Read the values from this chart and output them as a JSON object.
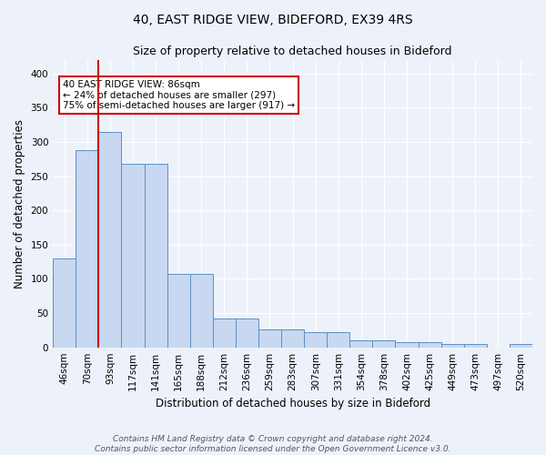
{
  "title1": "40, EAST RIDGE VIEW, BIDEFORD, EX39 4RS",
  "title2": "Size of property relative to detached houses in Bideford",
  "xlabel": "Distribution of detached houses by size in Bideford",
  "ylabel": "Number of detached properties",
  "categories": [
    "46sqm",
    "70sqm",
    "93sqm",
    "117sqm",
    "141sqm",
    "165sqm",
    "188sqm",
    "212sqm",
    "236sqm",
    "259sqm",
    "283sqm",
    "307sqm",
    "331sqm",
    "354sqm",
    "378sqm",
    "402sqm",
    "425sqm",
    "449sqm",
    "473sqm",
    "497sqm",
    "520sqm"
  ],
  "values": [
    130,
    288,
    315,
    268,
    268,
    107,
    107,
    42,
    42,
    26,
    26,
    22,
    22,
    10,
    10,
    7,
    7,
    5,
    5,
    0,
    5
  ],
  "bar_color": "#c8d8f0",
  "bar_edge_color": "#5b8ec4",
  "background_color": "#edf2fa",
  "grid_color": "#ffffff",
  "vline_color": "#cc0000",
  "vline_x": 1.5,
  "annotation_text": "40 EAST RIDGE VIEW: 86sqm\n← 24% of detached houses are smaller (297)\n75% of semi-detached houses are larger (917) →",
  "annotation_box_facecolor": "#ffffff",
  "annotation_box_edgecolor": "#cc0000",
  "ylim": [
    0,
    420
  ],
  "yticks": [
    0,
    50,
    100,
    150,
    200,
    250,
    300,
    350,
    400
  ],
  "footnote": "Contains HM Land Registry data © Crown copyright and database right 2024.\nContains public sector information licensed under the Open Government Licence v3.0.",
  "title1_fontsize": 10,
  "title2_fontsize": 9,
  "xlabel_fontsize": 8.5,
  "ylabel_fontsize": 8.5,
  "tick_fontsize": 7.5,
  "annotation_fontsize": 7.5,
  "footnote_fontsize": 6.5
}
